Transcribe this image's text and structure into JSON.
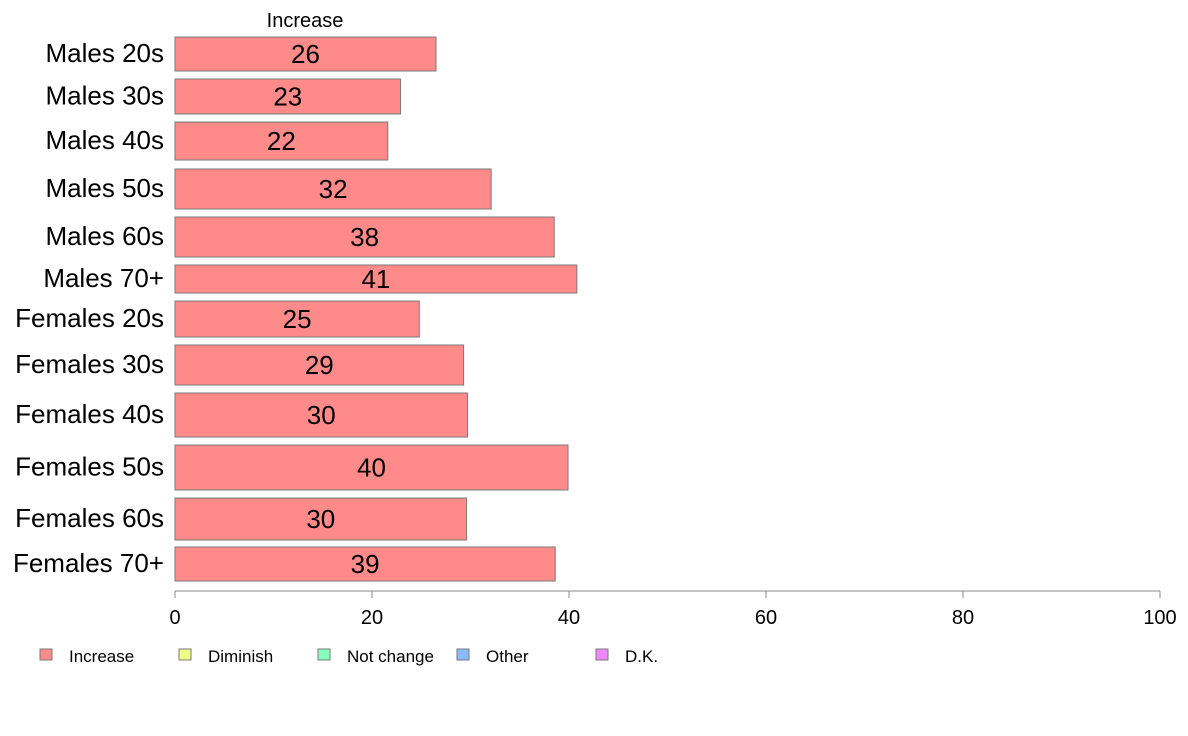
{
  "chart_data": {
    "type": "bar",
    "orientation": "horizontal",
    "stacked": true,
    "column_header": "Increase",
    "categories": [
      "Males 20s",
      "Males 30s",
      "Males 40s",
      "Males 50s",
      "Males 60s",
      "Males 70+",
      "Females 20s",
      "Females 30s",
      "Females 40s",
      "Females 50s",
      "Females 60s",
      "Females 70+"
    ],
    "series": [
      {
        "name": "Increase",
        "color": "#ff8a8a",
        "values": [
          26.5,
          22.9,
          21.6,
          32.1,
          38.5,
          40.8,
          24.8,
          29.3,
          29.7,
          39.9,
          29.6,
          38.6
        ],
        "labels": [
          "26",
          "23",
          "22",
          "32",
          "38",
          "41",
          "25",
          "29",
          "30",
          "40",
          "30",
          "39"
        ]
      }
    ],
    "legend": [
      {
        "name": "Increase",
        "color": "#ff8a8a"
      },
      {
        "name": "Diminish",
        "color": "#eeff88"
      },
      {
        "name": "Not change",
        "color": "#88ffbb"
      },
      {
        "name": "Other",
        "color": "#88bbff"
      },
      {
        "name": "D.K.",
        "color": "#ee88ff"
      }
    ],
    "xlim": [
      0,
      100
    ],
    "xticks": [
      0,
      20,
      40,
      60,
      80,
      100
    ],
    "legend_position": "bottom-left",
    "grid": false
  }
}
